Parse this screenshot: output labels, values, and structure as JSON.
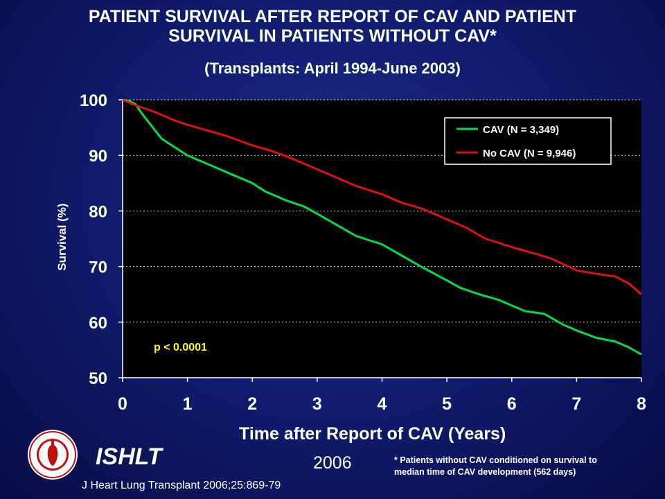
{
  "header": {
    "title_line1": "PATIENT SURVIVAL AFTER REPORT OF CAV AND PATIENT",
    "title_line2": "SURVIVAL IN PATIENTS WITHOUT CAV*",
    "subtitle": "(Transplants: April 1994-June 2003)"
  },
  "footer": {
    "org": "ISHLT",
    "year": "2006",
    "footnote_line1": "* Patients without CAV conditioned on survival to",
    "footnote_line2": "median time of CAV development (562 days)",
    "citation": "J Heart Lung Transplant 2006;25:869-79"
  },
  "colors": {
    "plot_bg": "#000000",
    "cav": "#00e040",
    "no_cav": "#e01010",
    "pvalue": "#ffff00",
    "grid": "#ffffff"
  },
  "chart_data": {
    "type": "line",
    "title": "PATIENT SURVIVAL AFTER REPORT OF CAV AND PATIENT SURVIVAL IN PATIENTS WITHOUT CAV*",
    "subtitle": "(Transplants: April 1994-June 2003)",
    "xlabel": "Time after Report of CAV (Years)",
    "ylabel": "Survival (%)",
    "xlim": [
      0,
      8
    ],
    "ylim": [
      50,
      100
    ],
    "xticks": [
      "0",
      "1",
      "2",
      "3",
      "4",
      "5",
      "6",
      "7",
      "8"
    ],
    "yticks": [
      "50",
      "60",
      "70",
      "80",
      "90",
      "100"
    ],
    "grid": "horizontal dotted",
    "legend_position": "top-right",
    "annotation": "p < 0.0001",
    "series": [
      {
        "name": "CAV (N = 3,349)",
        "color": "#00e040",
        "x": [
          0,
          0.1,
          0.2,
          0.3,
          0.4,
          0.5,
          0.6,
          0.8,
          1.0,
          1.2,
          1.5,
          1.8,
          2.0,
          2.2,
          2.5,
          2.8,
          3.0,
          3.3,
          3.6,
          4.0,
          4.3,
          4.6,
          5.0,
          5.2,
          5.5,
          5.8,
          6.0,
          6.2,
          6.5,
          6.8,
          7.0,
          7.3,
          7.6,
          7.8,
          8.0
        ],
        "y": [
          100,
          99.8,
          99.2,
          97.5,
          96,
          94.5,
          93,
          91.5,
          90,
          89,
          87.5,
          86,
          85,
          83.5,
          82,
          80.8,
          79.5,
          77.5,
          75.5,
          74,
          72,
          70,
          67.5,
          66.2,
          65,
          64,
          63,
          62,
          61.5,
          59.5,
          58.5,
          57.2,
          56.5,
          55.5,
          54.2
        ]
      },
      {
        "name": "No CAV (N = 9,946)",
        "color": "#e01010",
        "x": [
          0,
          0.2,
          0.5,
          0.8,
          1.0,
          1.3,
          1.6,
          2.0,
          2.3,
          2.6,
          3.0,
          3.3,
          3.6,
          4.0,
          4.3,
          4.6,
          5.0,
          5.3,
          5.6,
          6.0,
          6.3,
          6.6,
          7.0,
          7.3,
          7.6,
          7.8,
          8.0
        ],
        "y": [
          100,
          99,
          97.8,
          96.3,
          95.5,
          94.5,
          93.5,
          91.8,
          90.8,
          89.5,
          87.5,
          86,
          84.5,
          83,
          81.5,
          80.5,
          78.5,
          77,
          75,
          73.5,
          72.5,
          71.5,
          69.3,
          68.7,
          68.2,
          67,
          65
        ]
      }
    ]
  }
}
